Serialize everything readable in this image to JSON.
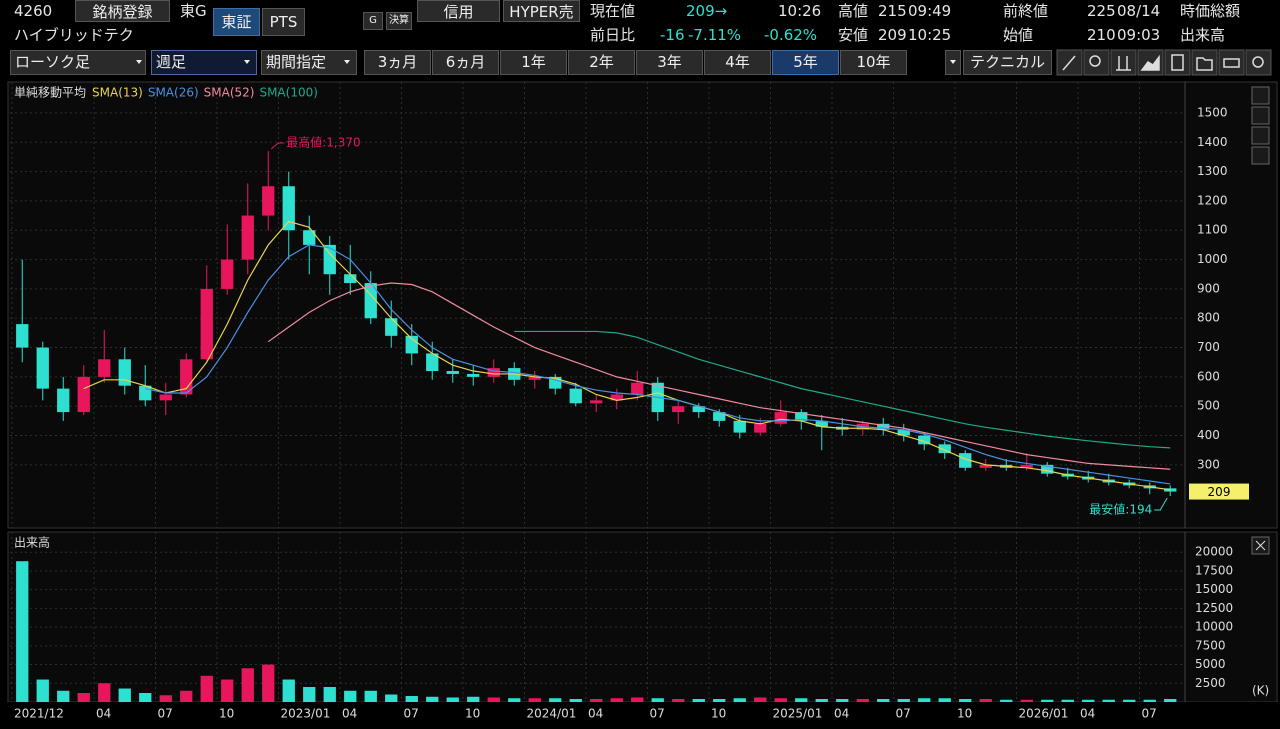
{
  "header": {
    "code": "4260",
    "register": "銘柄登録",
    "market": "東G",
    "exchanges": [
      "東証",
      "PTS"
    ],
    "icons": [
      "G",
      "決算"
    ],
    "margin": "信用",
    "hyper": "HYPER売",
    "name": "ハイブリッドテク",
    "quote": {
      "current": {
        "label": "現在値",
        "value": "209→",
        "time": "10:26"
      },
      "high": {
        "label": "高値",
        "value": "215",
        "time": "09:49"
      },
      "prev_close": {
        "label": "前終値",
        "value": "225",
        "time": "08/14"
      },
      "market_cap": {
        "label": "時価総額"
      },
      "change": {
        "label": "前日比",
        "value": "-16",
        "pct": "-7.11%",
        "other": "-0.62%"
      },
      "low": {
        "label": "安値",
        "value": "209",
        "time": "10:25"
      },
      "open": {
        "label": "始値",
        "value": "210",
        "time": "09:03"
      },
      "volume": {
        "label": "出来高"
      }
    }
  },
  "toolbar": {
    "chart_style": "ローソク足",
    "interval": "週足",
    "range": "期間指定",
    "periods": [
      "3ヵ月",
      "6ヵ月",
      "1年",
      "2年",
      "3年",
      "4年",
      "5年",
      "10年"
    ],
    "active_period": 6,
    "technical": "テクニカル"
  },
  "chart_data": [
    {
      "type": "candlestick",
      "indicator": "単純移動平均",
      "up_color": "#e8175d",
      "down_color": "#2ee0d0",
      "grid": true,
      "ylim": [
        95,
        1585
      ],
      "yticks": [
        300,
        400,
        500,
        600,
        700,
        800,
        900,
        1000,
        1100,
        1200,
        1300,
        1400,
        1500
      ],
      "ohlc": [
        [
          780,
          1000,
          650,
          700
        ],
        [
          700,
          720,
          520,
          560
        ],
        [
          560,
          600,
          450,
          480
        ],
        [
          480,
          640,
          470,
          600
        ],
        [
          600,
          760,
          580,
          660
        ],
        [
          660,
          700,
          540,
          570
        ],
        [
          570,
          640,
          500,
          520
        ],
        [
          520,
          580,
          470,
          540
        ],
        [
          540,
          680,
          530,
          660
        ],
        [
          660,
          980,
          650,
          900
        ],
        [
          900,
          1120,
          880,
          1000
        ],
        [
          1000,
          1260,
          950,
          1150
        ],
        [
          1150,
          1370,
          1100,
          1250
        ],
        [
          1250,
          1300,
          1000,
          1100
        ],
        [
          1100,
          1150,
          950,
          1050
        ],
        [
          1050,
          1080,
          880,
          950
        ],
        [
          950,
          1050,
          880,
          920
        ],
        [
          920,
          960,
          780,
          800
        ],
        [
          800,
          860,
          700,
          740
        ],
        [
          740,
          780,
          640,
          680
        ],
        [
          680,
          720,
          590,
          620
        ],
        [
          620,
          660,
          580,
          610
        ],
        [
          610,
          640,
          570,
          600
        ],
        [
          600,
          660,
          580,
          630
        ],
        [
          630,
          650,
          570,
          590
        ],
        [
          590,
          620,
          560,
          600
        ],
        [
          600,
          610,
          540,
          560
        ],
        [
          560,
          580,
          500,
          510
        ],
        [
          510,
          540,
          480,
          520
        ],
        [
          520,
          560,
          490,
          540
        ],
        [
          540,
          620,
          520,
          580
        ],
        [
          580,
          600,
          450,
          480
        ],
        [
          480,
          520,
          440,
          500
        ],
        [
          500,
          510,
          460,
          480
        ],
        [
          480,
          490,
          430,
          450
        ],
        [
          450,
          470,
          390,
          410
        ],
        [
          410,
          460,
          400,
          440
        ],
        [
          440,
          520,
          430,
          480
        ],
        [
          480,
          490,
          420,
          450
        ],
        [
          450,
          470,
          350,
          430
        ],
        [
          430,
          460,
          400,
          420
        ],
        [
          420,
          450,
          400,
          440
        ],
        [
          440,
          460,
          400,
          420
        ],
        [
          420,
          440,
          380,
          400
        ],
        [
          400,
          410,
          350,
          370
        ],
        [
          370,
          380,
          320,
          340
        ],
        [
          340,
          350,
          280,
          290
        ],
        [
          290,
          320,
          280,
          300
        ],
        [
          300,
          320,
          280,
          290
        ],
        [
          290,
          340,
          280,
          300
        ],
        [
          300,
          310,
          260,
          270
        ],
        [
          270,
          290,
          250,
          260
        ],
        [
          260,
          280,
          240,
          250
        ],
        [
          250,
          270,
          230,
          240
        ],
        [
          240,
          250,
          220,
          230
        ],
        [
          230,
          240,
          200,
          220
        ],
        [
          220,
          230,
          194,
          209
        ]
      ],
      "series": [
        {
          "name": "SMA(13)",
          "color": "#e8d44d",
          "values": [
            null,
            null,
            null,
            560,
            590,
            590,
            570,
            545,
            560,
            650,
            780,
            930,
            1050,
            1130,
            1110,
            1020,
            950,
            880,
            800,
            730,
            680,
            640,
            620,
            610,
            610,
            600,
            595,
            575,
            540,
            520,
            530,
            545,
            520,
            500,
            480,
            450,
            440,
            455,
            450,
            430,
            425,
            425,
            420,
            400,
            380,
            350,
            320,
            300,
            295,
            290,
            280,
            265,
            255,
            245,
            235,
            225,
            215
          ]
        },
        {
          "name": "SMA(26)",
          "color": "#4a90e2",
          "values": [
            null,
            null,
            null,
            null,
            null,
            null,
            560,
            545,
            545,
            600,
            700,
            820,
            930,
            1010,
            1050,
            1040,
            1000,
            920,
            830,
            760,
            700,
            660,
            640,
            620,
            615,
            605,
            590,
            570,
            555,
            545,
            540,
            530,
            520,
            500,
            480,
            460,
            450,
            450,
            455,
            450,
            440,
            430,
            425,
            420,
            405,
            385,
            360,
            335,
            315,
            305,
            295,
            285,
            275,
            265,
            255,
            245,
            235
          ]
        },
        {
          "name": "SMA(52)",
          "color": "#f08aa0",
          "values": [
            null,
            null,
            null,
            null,
            null,
            null,
            null,
            null,
            null,
            null,
            null,
            null,
            720,
            770,
            820,
            860,
            890,
            910,
            920,
            915,
            890,
            850,
            810,
            770,
            735,
            700,
            675,
            650,
            625,
            600,
            585,
            570,
            555,
            540,
            525,
            510,
            495,
            485,
            475,
            465,
            455,
            445,
            435,
            425,
            410,
            395,
            380,
            365,
            350,
            335,
            325,
            315,
            305,
            300,
            295,
            290,
            285
          ]
        },
        {
          "name": "SMA(100)",
          "color": "#1fa88a",
          "values": [
            null,
            null,
            null,
            null,
            null,
            null,
            null,
            null,
            null,
            null,
            null,
            null,
            null,
            null,
            null,
            null,
            null,
            null,
            null,
            null,
            null,
            null,
            null,
            null,
            755,
            755,
            755,
            755,
            755,
            750,
            735,
            710,
            685,
            660,
            640,
            620,
            600,
            580,
            560,
            545,
            530,
            515,
            500,
            485,
            470,
            455,
            440,
            428,
            418,
            408,
            398,
            390,
            382,
            375,
            368,
            362,
            358
          ]
        }
      ],
      "annotations": [
        {
          "text": "最高値:1,370",
          "value": 1370
        },
        {
          "text": "最安値:194",
          "value": 194
        }
      ],
      "current_price": 209,
      "current_price_color": "#f5f06a"
    },
    {
      "type": "bar",
      "title": "出来高",
      "unit": "(K)",
      "grid": true,
      "ylim": [
        0,
        22300
      ],
      "yticks": [
        2500,
        5000,
        7500,
        10000,
        12500,
        15000,
        17500,
        20000
      ],
      "categories": [
        "2021/12",
        null,
        null,
        null,
        "04",
        null,
        null,
        "07",
        null,
        null,
        "10",
        null,
        null,
        "2023/01",
        null,
        null,
        "04",
        null,
        null,
        "07",
        null,
        null,
        "10",
        null,
        null,
        "2024/01",
        null,
        null,
        "04",
        null,
        null,
        "07",
        null,
        null,
        "10",
        null,
        null,
        "2025/01",
        null,
        null,
        "04",
        null,
        null,
        "07",
        null,
        null,
        "10",
        null,
        null,
        "2026/01",
        null,
        null,
        "04",
        null,
        null,
        "07",
        null
      ],
      "values": [
        18800,
        3000,
        1500,
        1200,
        2500,
        1800,
        1200,
        900,
        1500,
        3500,
        3000,
        4500,
        5000,
        3000,
        2000,
        2000,
        1500,
        1500,
        1000,
        800,
        700,
        600,
        700,
        600,
        500,
        500,
        500,
        400,
        400,
        500,
        600,
        500,
        400,
        400,
        400,
        500,
        600,
        500,
        500,
        400,
        400,
        400,
        400,
        400,
        500,
        500,
        400,
        400,
        300,
        300,
        300,
        300,
        300,
        300,
        300,
        300,
        400
      ]
    }
  ]
}
